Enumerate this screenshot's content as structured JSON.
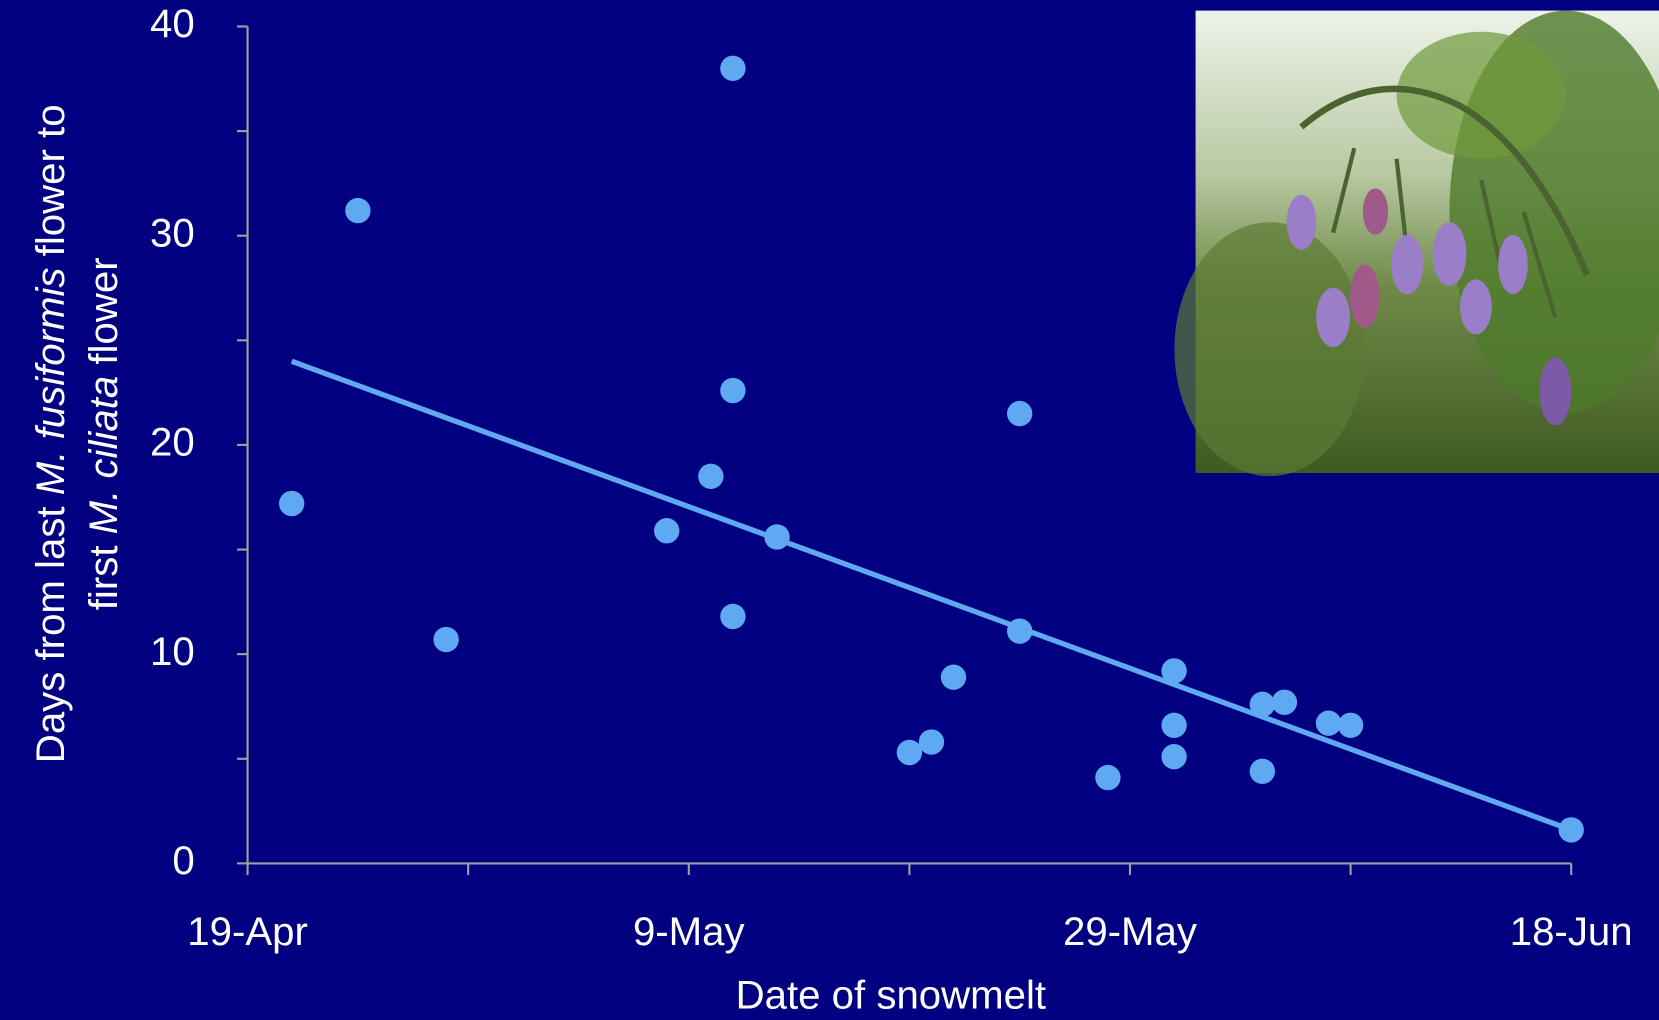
{
  "chart_data": {
    "type": "scatter",
    "xlabel": "Date of snowmelt",
    "ylabel": [
      [
        {
          "text": "Days from last "
        },
        {
          "text": "M. fusiformis",
          "italic": true
        },
        {
          "text": " flower to"
        }
      ],
      [
        {
          "text": "first "
        },
        {
          "text": "M. ciliata",
          "italic": true
        },
        {
          "text": " flower"
        }
      ]
    ],
    "x": [
      2,
      5,
      9,
      19,
      21,
      22,
      22,
      22,
      24,
      30,
      31,
      32,
      35,
      35,
      39,
      42,
      42,
      42,
      46,
      47,
      46,
      49,
      50,
      60
    ],
    "values": [
      17.2,
      31.2,
      10.7,
      15.9,
      18.5,
      38.0,
      22.6,
      11.8,
      15.6,
      5.3,
      5.8,
      8.9,
      21.5,
      11.1,
      4.1,
      9.2,
      6.6,
      5.1,
      7.6,
      7.7,
      4.4,
      6.7,
      6.6,
      1.6
    ],
    "color": "#5ea9f2",
    "trendline": {
      "x": [
        2,
        60
      ],
      "values": [
        24.0,
        1.6
      ],
      "color": "#5ea9f2"
    },
    "xlim": [
      0,
      60
    ],
    "ylim": [
      0,
      40
    ],
    "xticks": [
      {
        "value": 0,
        "label": "19-Apr"
      },
      {
        "value": 20,
        "label": "9-May"
      },
      {
        "value": 40,
        "label": "29-May"
      },
      {
        "value": 60,
        "label": "18-Jun"
      }
    ],
    "x_minor_ticks": [
      10,
      30,
      50
    ],
    "yticks": [
      0,
      10,
      20,
      30,
      40
    ],
    "y_minor_ticks": [
      5,
      15,
      25,
      35
    ]
  }
}
